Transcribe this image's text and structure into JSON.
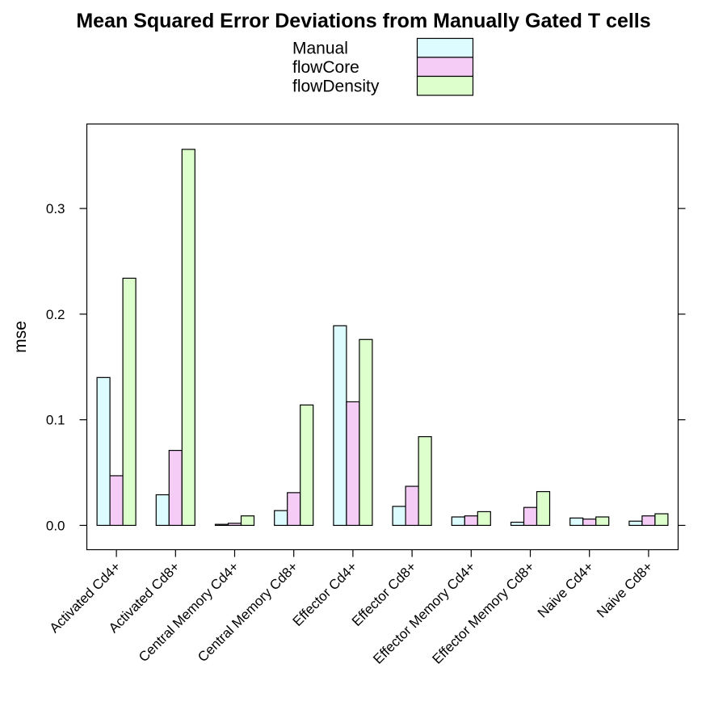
{
  "chart_data": {
    "type": "bar",
    "title": "Mean Squared Error Deviations from Manually Gated T cells",
    "xlabel": "",
    "ylabel": "mse",
    "ylim": [
      -0.023,
      0.38
    ],
    "yticks": [
      0.0,
      0.1,
      0.2,
      0.3
    ],
    "ytick_labels": [
      "0.0",
      "0.1",
      "0.2",
      "0.3"
    ],
    "grid": false,
    "legend_position": "top-center",
    "categories": [
      "Activated Cd4+",
      "Activated Cd8+",
      "Central Memory Cd4+",
      "Central Memory Cd8+",
      "Effector Cd4+",
      "Effector Cd8+",
      "Effector Memory Cd4+",
      "Effector Memory Cd8+",
      "Naive Cd4+",
      "Naive Cd8+"
    ],
    "series": [
      {
        "name": "Manual",
        "color": "#dcfcff",
        "values": [
          0.14,
          0.029,
          0.001,
          0.014,
          0.189,
          0.018,
          0.008,
          0.003,
          0.007,
          0.004
        ]
      },
      {
        "name": "flowCore",
        "color": "#f5ccf5",
        "values": [
          0.047,
          0.071,
          0.002,
          0.031,
          0.117,
          0.037,
          0.009,
          0.017,
          0.006,
          0.009
        ]
      },
      {
        "name": "flowDensity",
        "color": "#dcffcc",
        "values": [
          0.234,
          0.356,
          0.009,
          0.114,
          0.176,
          0.084,
          0.013,
          0.032,
          0.008,
          0.011
        ]
      }
    ]
  }
}
